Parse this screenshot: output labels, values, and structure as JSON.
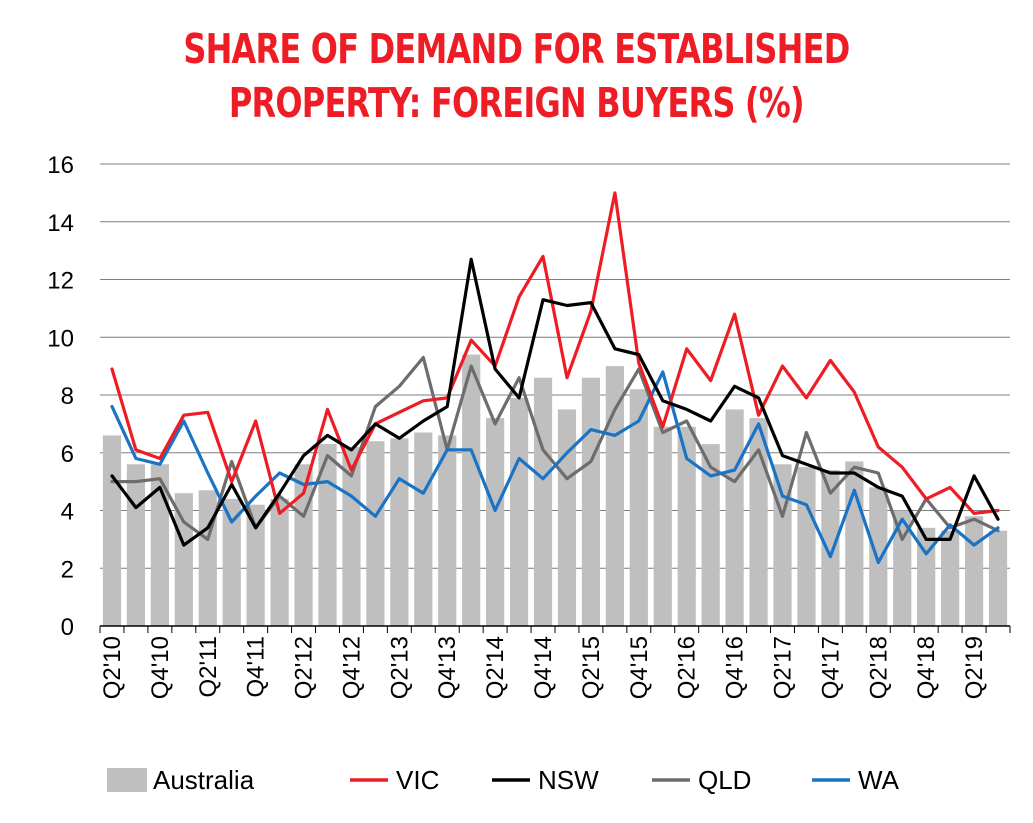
{
  "chart_data": {
    "type": "bar",
    "title_lines": [
      "SHARE OF DEMAND FOR ESTABLISHED",
      "PROPERTY: FOREIGN BUYERS (%)"
    ],
    "xlabel": "",
    "ylabel": "",
    "ylim": [
      0,
      16
    ],
    "yticks": [
      "0",
      "2",
      "4",
      "6",
      "8",
      "10",
      "12",
      "14",
      "16"
    ],
    "grid": true,
    "legend_position": "bottom",
    "x_tick_labels": [
      "Q2'10",
      "Q4'10",
      "Q2'11",
      "Q4'11",
      "Q2'12",
      "Q4'12",
      "Q2'13",
      "Q4'13",
      "Q2'14",
      "Q4'14",
      "Q2'15",
      "Q4'15",
      "Q2'16",
      "Q4'16",
      "Q2'17",
      "Q4'17",
      "Q2'18",
      "Q4'18",
      "Q2'19"
    ],
    "categories": [
      "Q2'10",
      "Q3'10",
      "Q4'10",
      "Q1'11",
      "Q2'11",
      "Q3'11",
      "Q4'11",
      "Q1'12",
      "Q2'12",
      "Q3'12",
      "Q4'12",
      "Q1'13",
      "Q2'13",
      "Q3'13",
      "Q4'13",
      "Q1'14",
      "Q2'14",
      "Q3'14",
      "Q4'14",
      "Q1'15",
      "Q2'15",
      "Q3'15",
      "Q4'15",
      "Q1'16",
      "Q2'16",
      "Q3'16",
      "Q4'16",
      "Q1'17",
      "Q2'17",
      "Q3'17",
      "Q4'17",
      "Q1'18",
      "Q2'18",
      "Q3'18",
      "Q4'18",
      "Q1'19",
      "Q2'19",
      "Q3'19"
    ],
    "bars": {
      "name": "Australia",
      "color": "#bfbfbf",
      "values": [
        6.6,
        5.6,
        5.6,
        4.6,
        4.7,
        4.4,
        4.2,
        4.4,
        5.6,
        6.3,
        6.2,
        6.4,
        6.5,
        6.7,
        6.6,
        9.4,
        7.2,
        7.9,
        8.6,
        7.5,
        8.6,
        9.0,
        8.2,
        6.9,
        6.9,
        6.3,
        7.5,
        7.2,
        5.6,
        5.5,
        5.4,
        5.7,
        4.8,
        4.0,
        3.4,
        3.3,
        3.8,
        3.3
      ]
    },
    "series": [
      {
        "name": "VIC",
        "color": "#ee1c24",
        "values": [
          8.9,
          6.1,
          5.8,
          7.3,
          7.4,
          5.0,
          7.1,
          3.9,
          4.6,
          7.5,
          5.4,
          7.0,
          7.4,
          7.8,
          7.9,
          9.9,
          9.0,
          11.4,
          12.8,
          8.6,
          10.9,
          15.0,
          9.1,
          6.9,
          9.6,
          8.5,
          10.8,
          7.3,
          9.0,
          7.9,
          9.2,
          8.1,
          6.2,
          5.5,
          4.4,
          4.8,
          3.9,
          4.0
        ]
      },
      {
        "name": "NSW",
        "color": "#000000",
        "values": [
          5.2,
          4.1,
          4.8,
          2.8,
          3.4,
          4.9,
          3.4,
          4.6,
          5.9,
          6.6,
          6.1,
          7.0,
          6.5,
          7.1,
          7.6,
          12.7,
          8.9,
          7.9,
          11.3,
          11.1,
          11.2,
          9.6,
          9.4,
          7.8,
          7.5,
          7.1,
          8.3,
          7.9,
          5.9,
          5.6,
          5.3,
          5.3,
          4.8,
          4.5,
          3.0,
          3.0,
          5.2,
          3.7
        ]
      },
      {
        "name": "QLD",
        "color": "#6d6d6d",
        "values": [
          5.0,
          5.0,
          5.1,
          3.6,
          3.0,
          5.7,
          3.4,
          4.5,
          3.8,
          5.9,
          5.2,
          7.6,
          8.3,
          9.3,
          6.1,
          9.0,
          7.0,
          8.6,
          6.1,
          5.1,
          5.7,
          7.5,
          8.9,
          6.7,
          7.1,
          5.5,
          5.0,
          6.1,
          3.8,
          6.7,
          4.6,
          5.5,
          5.3,
          3.0,
          4.4,
          3.4,
          3.7,
          3.3
        ]
      },
      {
        "name": "WA",
        "color": "#1a73c4",
        "values": [
          7.6,
          5.8,
          5.6,
          7.1,
          5.3,
          3.6,
          4.5,
          5.3,
          4.9,
          5.0,
          4.5,
          3.8,
          5.1,
          4.6,
          6.1,
          6.1,
          4.0,
          5.8,
          5.1,
          6.0,
          6.8,
          6.6,
          7.1,
          8.8,
          5.8,
          5.2,
          5.4,
          7.0,
          4.5,
          4.2,
          2.4,
          4.7,
          2.2,
          3.7,
          2.5,
          3.5,
          2.8,
          3.4
        ]
      }
    ]
  }
}
